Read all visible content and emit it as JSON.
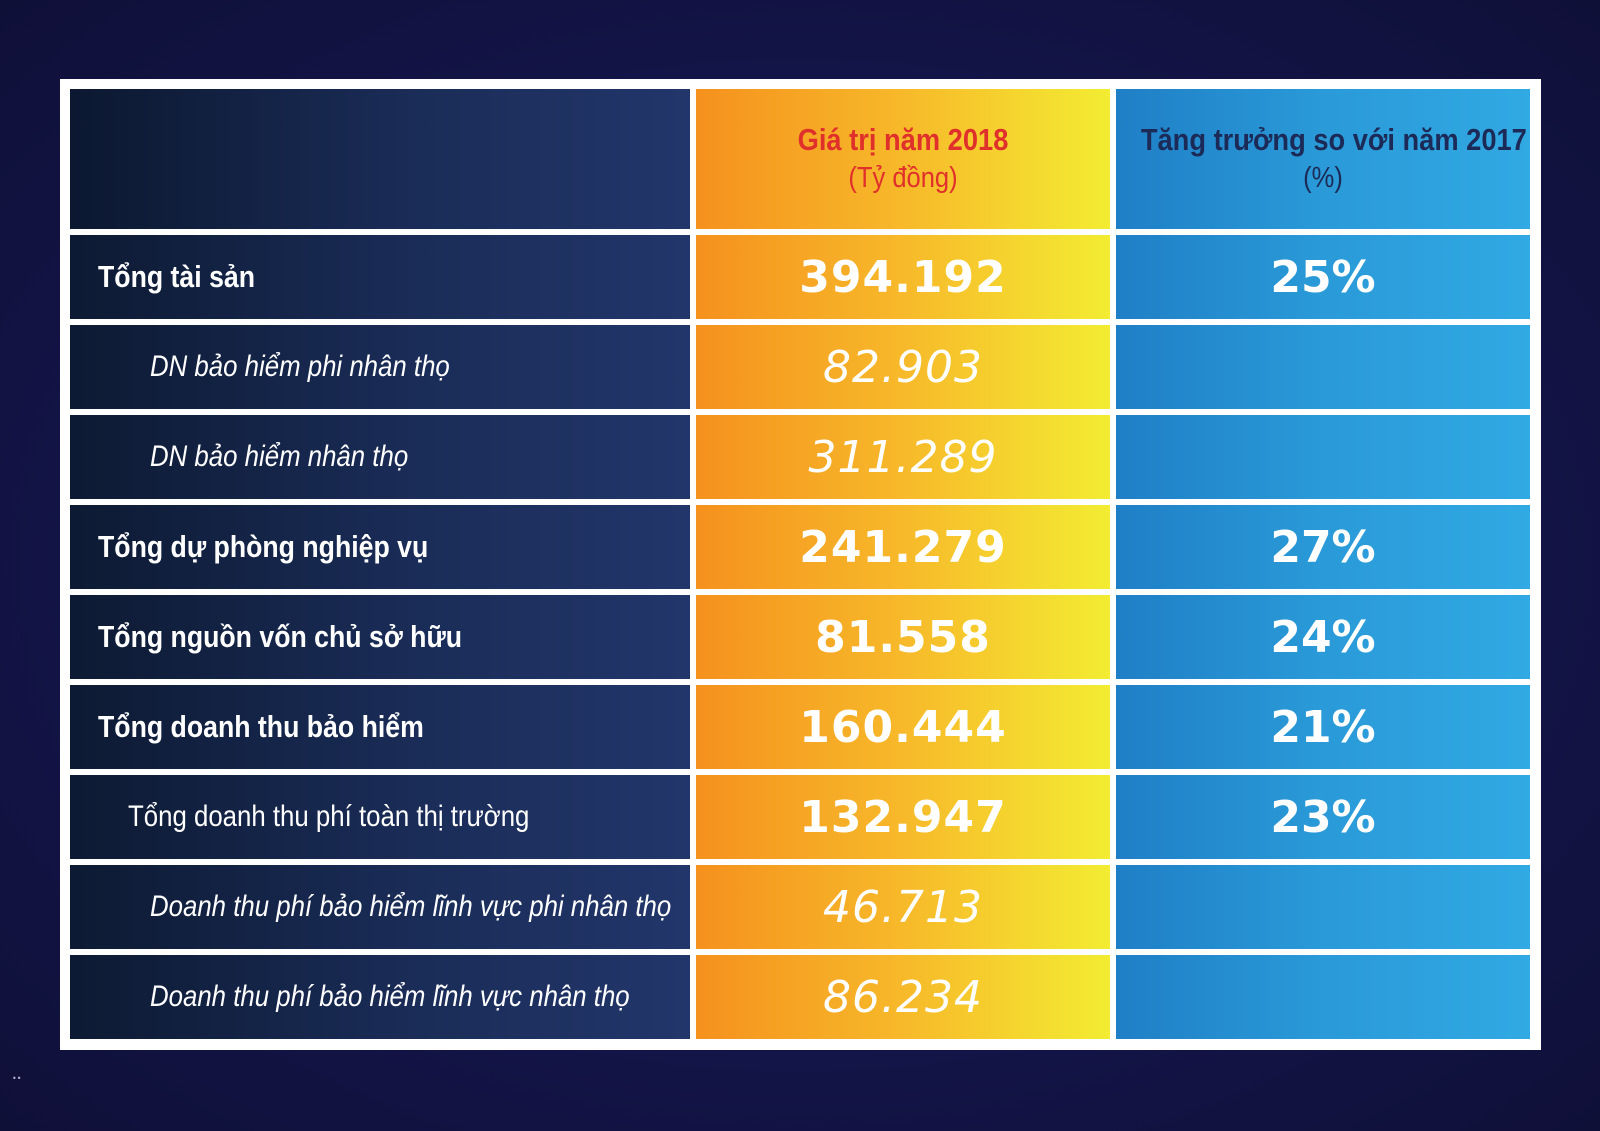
{
  "chart_data": {
    "type": "table",
    "columns": [
      "",
      "Giá trị năm 2018\n(Tỷ đồng)",
      "Tăng trưởng so với năm 2017\n(%)"
    ],
    "header": {
      "value_title": "Giá trị năm 2018",
      "value_unit": "(Tỷ đồng)",
      "growth_title": "Tăng trưởng so với năm 2017",
      "growth_unit": "(%)"
    },
    "rows": [
      {
        "label": "Tổng tài sản",
        "style": "bold",
        "value": "394.192",
        "growth": "25%"
      },
      {
        "label": "DN bảo hiểm phi nhân thọ",
        "style": "italic",
        "value": "82.903",
        "growth": ""
      },
      {
        "label": "DN bảo hiểm nhân thọ",
        "style": "italic",
        "value": "311.289",
        "growth": ""
      },
      {
        "label": "Tổng dự phòng nghiệp vụ",
        "style": "bold",
        "value": "241.279",
        "growth": "27%"
      },
      {
        "label": "Tổng nguồn vốn chủ sở hữu",
        "style": "bold",
        "value": "81.558",
        "growth": "24%"
      },
      {
        "label": "Tổng doanh thu bảo hiểm",
        "style": "bold",
        "value": "160.444",
        "growth": "21%"
      },
      {
        "label": "Tổng doanh thu phí toàn thị trường",
        "style": "plain",
        "value": "132.947",
        "growth": "23%"
      },
      {
        "label": "Doanh thu phí bảo hiểm lĩnh vực phi nhân thọ",
        "style": "italic",
        "value": "46.713",
        "growth": ""
      },
      {
        "label": "Doanh thu phí bảo hiểm lĩnh vực nhân thọ",
        "style": "italic",
        "value": "86.234",
        "growth": ""
      }
    ]
  },
  "colors": {
    "background": "#14154a",
    "label_column": "#1a2c57",
    "value_column_start": "#f5911e",
    "value_column_end": "#f3ec32",
    "growth_column": "#2a9ad8",
    "value_header_text": "#e0302b",
    "growth_header_text": "#1c2a57"
  }
}
